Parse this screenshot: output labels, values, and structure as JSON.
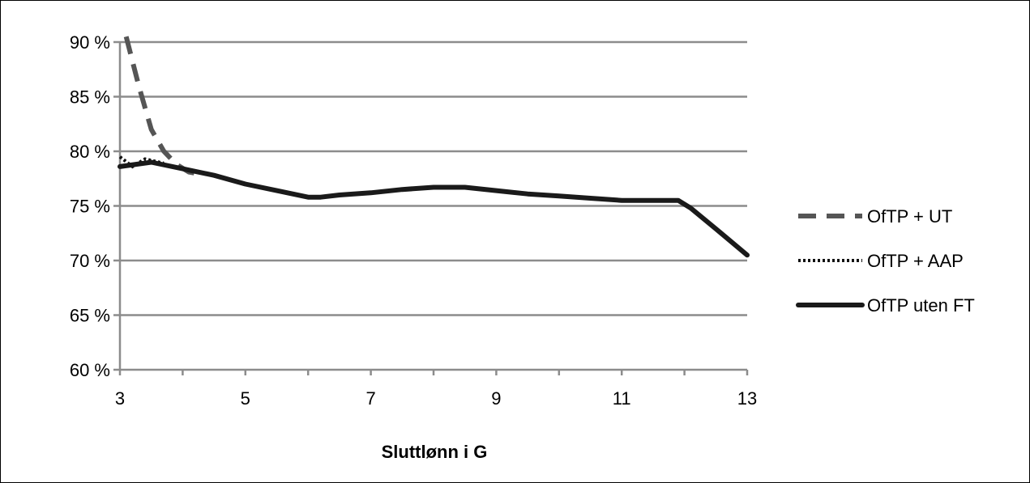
{
  "chart_data": {
    "type": "line",
    "title": "",
    "xlabel": "Sluttlønn i  G",
    "ylabel": "",
    "xlim": [
      3,
      13
    ],
    "ylim": [
      60,
      90
    ],
    "x_ticks": [
      3,
      5,
      7,
      9,
      11,
      13
    ],
    "x_tick_labels": [
      "3",
      "5",
      "7",
      "9",
      "11",
      "13"
    ],
    "y_ticks": [
      60,
      65,
      70,
      75,
      80,
      85,
      90
    ],
    "y_tick_labels": [
      "60 %",
      "65 %",
      "70 %",
      "75 %",
      "80 %",
      "85 %",
      "90 %"
    ],
    "grid": "horizontal",
    "legend_position": "right",
    "series": [
      {
        "name": "OfTP + UT",
        "style": "dashed",
        "color": "#555555",
        "x": [
          3.1,
          3.3,
          3.5,
          3.7,
          3.9,
          4.1,
          4.3
        ],
        "y": [
          90.5,
          86,
          82,
          80,
          78.8,
          78.1,
          77.9
        ]
      },
      {
        "name": "OfTP + AAP",
        "style": "dotted",
        "color": "#111111",
        "x": [
          3.0,
          3.2,
          3.4,
          3.7
        ],
        "y": [
          79.5,
          78.6,
          79.3,
          78.9
        ]
      },
      {
        "name": "OfTP uten FT",
        "style": "solid",
        "color": "#1a1a1a",
        "x": [
          3.0,
          3.5,
          4.0,
          4.5,
          5.0,
          5.5,
          6.0,
          6.2,
          6.5,
          7.0,
          7.5,
          8.0,
          8.5,
          9.0,
          9.5,
          10.0,
          10.5,
          11.0,
          11.5,
          11.9,
          12.1,
          12.5,
          13.0
        ],
        "y": [
          78.6,
          79.0,
          78.4,
          77.8,
          77.0,
          76.4,
          75.8,
          75.8,
          76.0,
          76.2,
          76.5,
          76.7,
          76.7,
          76.4,
          76.1,
          75.9,
          75.7,
          75.5,
          75.5,
          75.5,
          74.8,
          72.9,
          70.5
        ]
      }
    ]
  }
}
